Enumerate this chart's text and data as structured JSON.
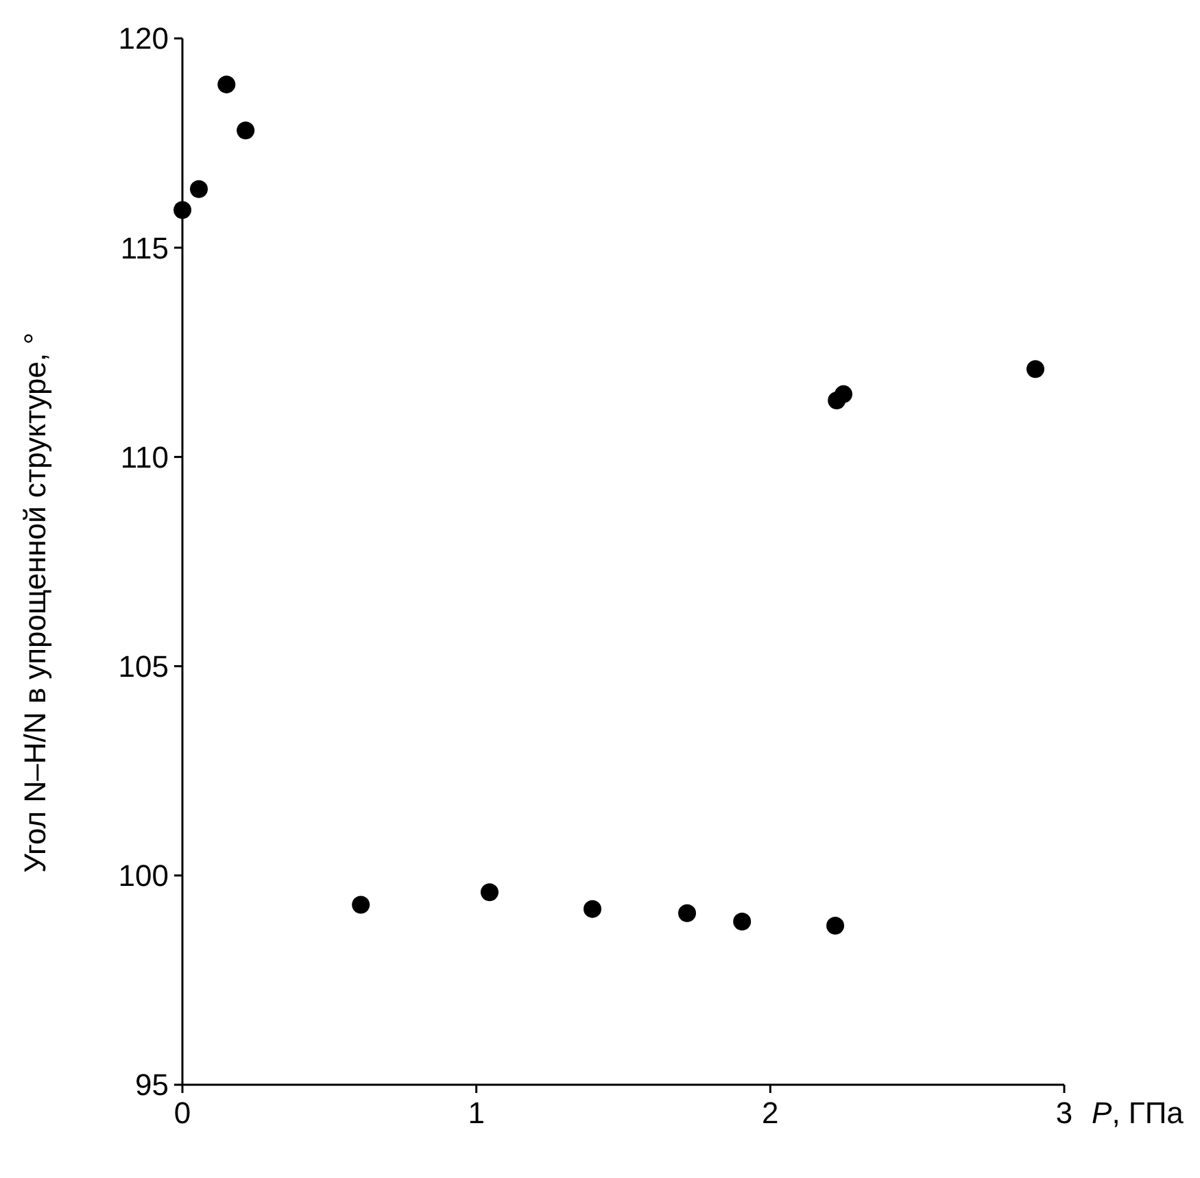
{
  "chart_data": {
    "type": "scatter",
    "xlabel": "P, ГПа",
    "ylabel": "Угол N–H/N в упрощенной структуре, °",
    "x": [
      0.0,
      0.056,
      0.15,
      0.215,
      0.607,
      1.045,
      1.395,
      1.717,
      1.904,
      2.221,
      2.226,
      2.249,
      2.902
    ],
    "series": [
      {
        "color": "#000000",
        "values": [
          115.9,
          116.4,
          118.9,
          117.8,
          99.3,
          99.6,
          99.2,
          99.1,
          98.9,
          98.8,
          111.35,
          111.5,
          112.1
        ]
      }
    ],
    "xlim": [
      0,
      3
    ],
    "ylim": [
      95,
      120
    ],
    "xticks": [
      0,
      1,
      2,
      3
    ],
    "yticks": [
      95,
      100,
      105,
      110,
      115,
      120
    ],
    "marker": "circle"
  }
}
